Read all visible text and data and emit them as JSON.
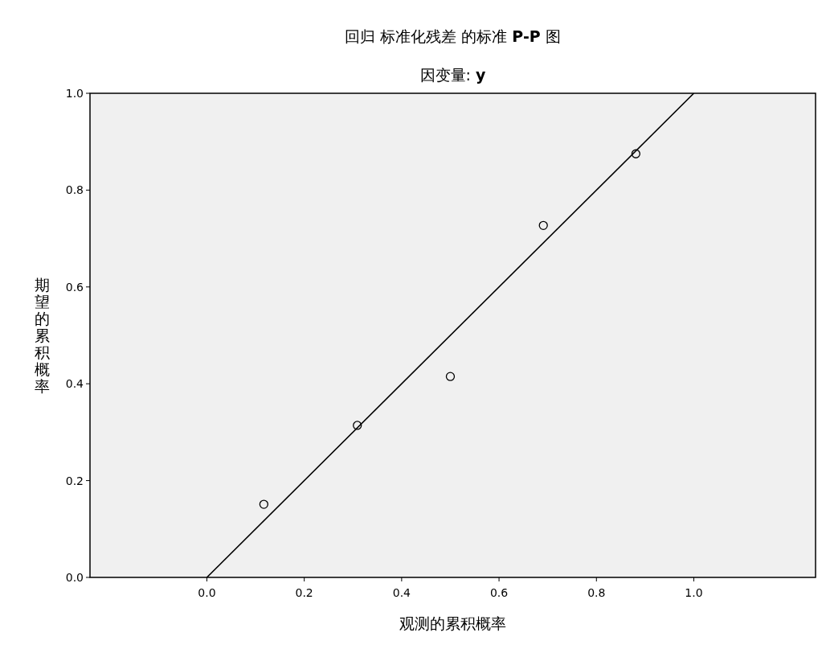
{
  "chart_data": {
    "type": "scatter",
    "title": "回归 标准化残差 的标准 **P-P** 图",
    "subtitle": "因变量: **y**",
    "xlabel": "观测的累积概率",
    "ylabel": "期望的累积概率",
    "xlim": [
      -0.24,
      1.25
    ],
    "ylim": [
      0,
      1
    ],
    "xticks": [
      {
        "value": 0,
        "label": "0.0"
      },
      {
        "value": 0.2,
        "label": "0.2"
      },
      {
        "value": 0.4,
        "label": "0.4"
      },
      {
        "value": 0.6,
        "label": "0.6"
      },
      {
        "value": 0.8,
        "label": "0.8"
      },
      {
        "value": 1,
        "label": "1.0"
      }
    ],
    "yticks": [
      {
        "value": 0,
        "label": "0.0"
      },
      {
        "value": 0.2,
        "label": "0.2"
      },
      {
        "value": 0.4,
        "label": "0.4"
      },
      {
        "value": 0.6,
        "label": "0.6"
      },
      {
        "value": 0.8,
        "label": "0.8"
      },
      {
        "value": 1,
        "label": "1.0"
      }
    ],
    "marker": "circle",
    "grid": false,
    "series": [
      {
        "color": "#000000",
        "x": [
          0.117,
          0.309,
          0.5,
          0.691,
          0.881
        ],
        "values": [
          0.151,
          0.314,
          0.415,
          0.727,
          0.875
        ]
      },
      {
        "type": "line",
        "color": "#000000",
        "x": [
          0,
          1
        ],
        "values": [
          0,
          1
        ],
        "marker": "none"
      }
    ]
  }
}
